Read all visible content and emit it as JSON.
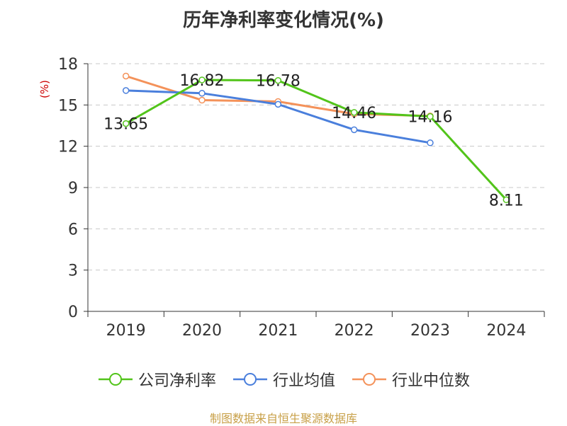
{
  "chart_data": {
    "type": "line",
    "title": "历年净利率变化情况(%)",
    "ylabel": "(%)",
    "categories": [
      "2019",
      "2020",
      "2021",
      "2022",
      "2023",
      "2024"
    ],
    "ylim": [
      0,
      18
    ],
    "yticks": [
      0,
      3,
      6,
      9,
      12,
      15,
      18
    ],
    "grid": "horizontal-dashed",
    "legend_position": "bottom",
    "series": [
      {
        "name": "公司净利率",
        "color": "#52c41a",
        "values": [
          13.65,
          16.82,
          16.78,
          14.46,
          14.16,
          8.11
        ],
        "data_labels": [
          "13.65",
          "16.82",
          "16.78",
          "14.46",
          "14.16",
          "8.11"
        ]
      },
      {
        "name": "行业均值",
        "color": "#4a7fdc",
        "values": [
          16.05,
          15.85,
          15.05,
          13.2,
          12.25,
          null
        ]
      },
      {
        "name": "行业中位数",
        "color": "#f4925a",
        "values": [
          17.1,
          15.35,
          15.25,
          14.35,
          14.2,
          null
        ]
      }
    ]
  },
  "source_note": "制图数据来自恒生聚源数据库"
}
